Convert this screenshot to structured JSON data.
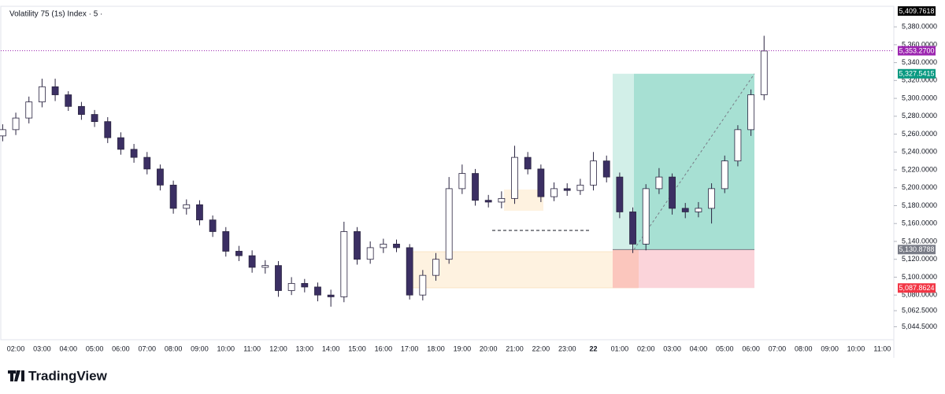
{
  "chart_data": {
    "type": "candlestick",
    "title": "Volatility 75 (1s) Index · 5 ·",
    "brand": "TradingView",
    "top_label": "5,409.7618",
    "up_color": "#ffffff",
    "down_color": "#3b2f63",
    "wick_color": "#2a2440",
    "grid": false,
    "categories": [
      null,
      "02:00",
      null,
      "03:00",
      null,
      "04:00",
      null,
      "05:00",
      null,
      "06:00",
      null,
      "07:00",
      null,
      "08:00",
      null,
      "09:00",
      null,
      "10:00",
      null,
      "11:00",
      null,
      "12:00",
      null,
      "13:00",
      null,
      "14:00",
      null,
      "15:00",
      null,
      "16:00",
      null,
      "17:00",
      null,
      "18:00",
      null,
      "19:00",
      null,
      "20:00",
      null,
      "21:00",
      null,
      "22:00",
      null,
      "23:00",
      null,
      "22",
      null,
      "01:00",
      null,
      "02:00",
      null,
      "03:00",
      null,
      "04:00",
      null,
      "05:00",
      null,
      "06:00",
      null,
      "07:00",
      null,
      "08:00",
      null,
      "09:00",
      null,
      "10:00",
      null,
      "11:00"
    ],
    "open": [
      5258,
      5265,
      5278,
      5296,
      5313,
      5304,
      5291,
      5282,
      5274,
      5256,
      5243,
      5234,
      5221,
      5203,
      5177,
      5181,
      5164,
      5151,
      5129,
      5124,
      5111,
      5113,
      5085,
      5093,
      5089,
      5080,
      5078,
      5151,
      5120,
      5133,
      5137,
      5133,
      5080,
      5102,
      5120,
      5199,
      5216,
      5186,
      5184,
      5188,
      5234,
      5221,
      5190,
      5199,
      5197,
      5203,
      5230,
      5212,
      5173,
      5137,
      5199,
      5212,
      5177,
      5173,
      5177,
      5199,
      5230,
      5265,
      5304,
      null,
      null,
      null,
      null,
      null,
      null,
      null,
      null,
      null
    ],
    "high": [
      5271,
      5284,
      5302,
      5322,
      5322,
      5308,
      5296,
      5287,
      5279,
      5262,
      5249,
      5240,
      5226,
      5208,
      5187,
      5186,
      5169,
      5156,
      5135,
      5130,
      5119,
      5118,
      5100,
      5098,
      5094,
      5086,
      5162,
      5156,
      5140,
      5143,
      5142,
      5137,
      5108,
      5127,
      5212,
      5226,
      5221,
      5192,
      5196,
      5247,
      5240,
      5226,
      5206,
      5205,
      5210,
      5240,
      5236,
      5217,
      5178,
      5204,
      5222,
      5216,
      5183,
      5184,
      5205,
      5236,
      5270,
      5310,
      5370,
      null,
      null,
      null,
      null,
      null,
      null,
      null,
      null,
      null
    ],
    "low": [
      5252,
      5259,
      5272,
      5290,
      5297,
      5286,
      5276,
      5268,
      5250,
      5237,
      5228,
      5215,
      5197,
      5171,
      5170,
      5158,
      5145,
      5123,
      5118,
      5105,
      5104,
      5078,
      5080,
      5083,
      5073,
      5067,
      5072,
      5114,
      5115,
      5127,
      5128,
      5075,
      5074,
      5096,
      5115,
      5193,
      5180,
      5178,
      5177,
      5182,
      5215,
      5184,
      5185,
      5191,
      5192,
      5197,
      5206,
      5166,
      5127,
      5130,
      5193,
      5170,
      5166,
      5167,
      5160,
      5194,
      5224,
      5258,
      5298,
      null,
      null,
      null,
      null,
      null,
      null,
      null,
      null,
      null
    ],
    "close": [
      5265,
      5278,
      5296,
      5313,
      5304,
      5291,
      5282,
      5274,
      5256,
      5243,
      5234,
      5221,
      5203,
      5177,
      5181,
      5164,
      5151,
      5129,
      5124,
      5111,
      5113,
      5085,
      5093,
      5089,
      5080,
      5078,
      5151,
      5120,
      5133,
      5137,
      5133,
      5080,
      5102,
      5120,
      5199,
      5216,
      5186,
      5184,
      5188,
      5234,
      5221,
      5190,
      5199,
      5197,
      5203,
      5230,
      5212,
      5173,
      5137,
      5199,
      5212,
      5177,
      5173,
      5177,
      5199,
      5230,
      5265,
      5304,
      5353,
      null,
      null,
      null,
      null,
      null,
      null,
      null,
      null,
      null
    ],
    "ylim": [
      5030,
      5403
    ],
    "yticks": [
      {
        "value": 5380,
        "label": "5,380.0000"
      },
      {
        "value": 5360,
        "label": "5,360.0000"
      },
      {
        "value": 5340,
        "label": "5,340.0000"
      },
      {
        "value": 5320,
        "label": "5,320.0000"
      },
      {
        "value": 5300,
        "label": "5,300.0000"
      },
      {
        "value": 5280,
        "label": "5,280.0000"
      },
      {
        "value": 5260,
        "label": "5,260.0000"
      },
      {
        "value": 5240,
        "label": "5,240.0000"
      },
      {
        "value": 5220,
        "label": "5,220.0000"
      },
      {
        "value": 5200,
        "label": "5,200.0000"
      },
      {
        "value": 5180,
        "label": "5,180.0000"
      },
      {
        "value": 5160,
        "label": "5,160.0000"
      },
      {
        "value": 5140,
        "label": "5,140.0000"
      },
      {
        "value": 5120,
        "label": "5,120.0000"
      },
      {
        "value": 5100,
        "label": "5,100.0000"
      },
      {
        "value": 5080,
        "label": "5,080.0000"
      },
      {
        "value": 5062.5,
        "label": "5,062.5000"
      },
      {
        "value": 5044.5,
        "label": "5,044.5000"
      }
    ],
    "price_labels": [
      {
        "value": 5353.27,
        "label": "5,353.2700",
        "color": "#9c27b0"
      },
      {
        "value": 5327.5415,
        "label": "5,327.5415",
        "color": "#089981"
      },
      {
        "value": 5130.8788,
        "label": "5,130.8788",
        "color": "#787b86"
      },
      {
        "value": 5087.8624,
        "label": "5,087.8624",
        "color": "#f23645"
      }
    ]
  }
}
